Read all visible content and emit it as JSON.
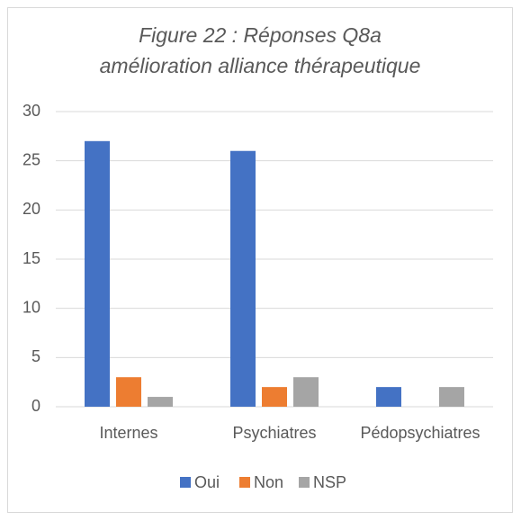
{
  "chart_data": {
    "type": "bar",
    "title": [
      "Figure 22 : Réponses Q8a",
      "amélioration alliance thérapeutique"
    ],
    "categories": [
      "Internes",
      "Psychiatres",
      "Pédopsychiatres"
    ],
    "series": [
      {
        "name": "Oui",
        "color": "#4472c4",
        "values": [
          27,
          26,
          2
        ]
      },
      {
        "name": "Non",
        "color": "#ed7d31",
        "values": [
          3,
          2,
          0
        ]
      },
      {
        "name": "NSP",
        "color": "#a5a5a5",
        "values": [
          1,
          3,
          2
        ]
      }
    ],
    "ylim": [
      0,
      30
    ],
    "yticks": [
      0,
      5,
      10,
      15,
      20,
      25,
      30
    ],
    "grid": true,
    "legend": "bottom"
  }
}
